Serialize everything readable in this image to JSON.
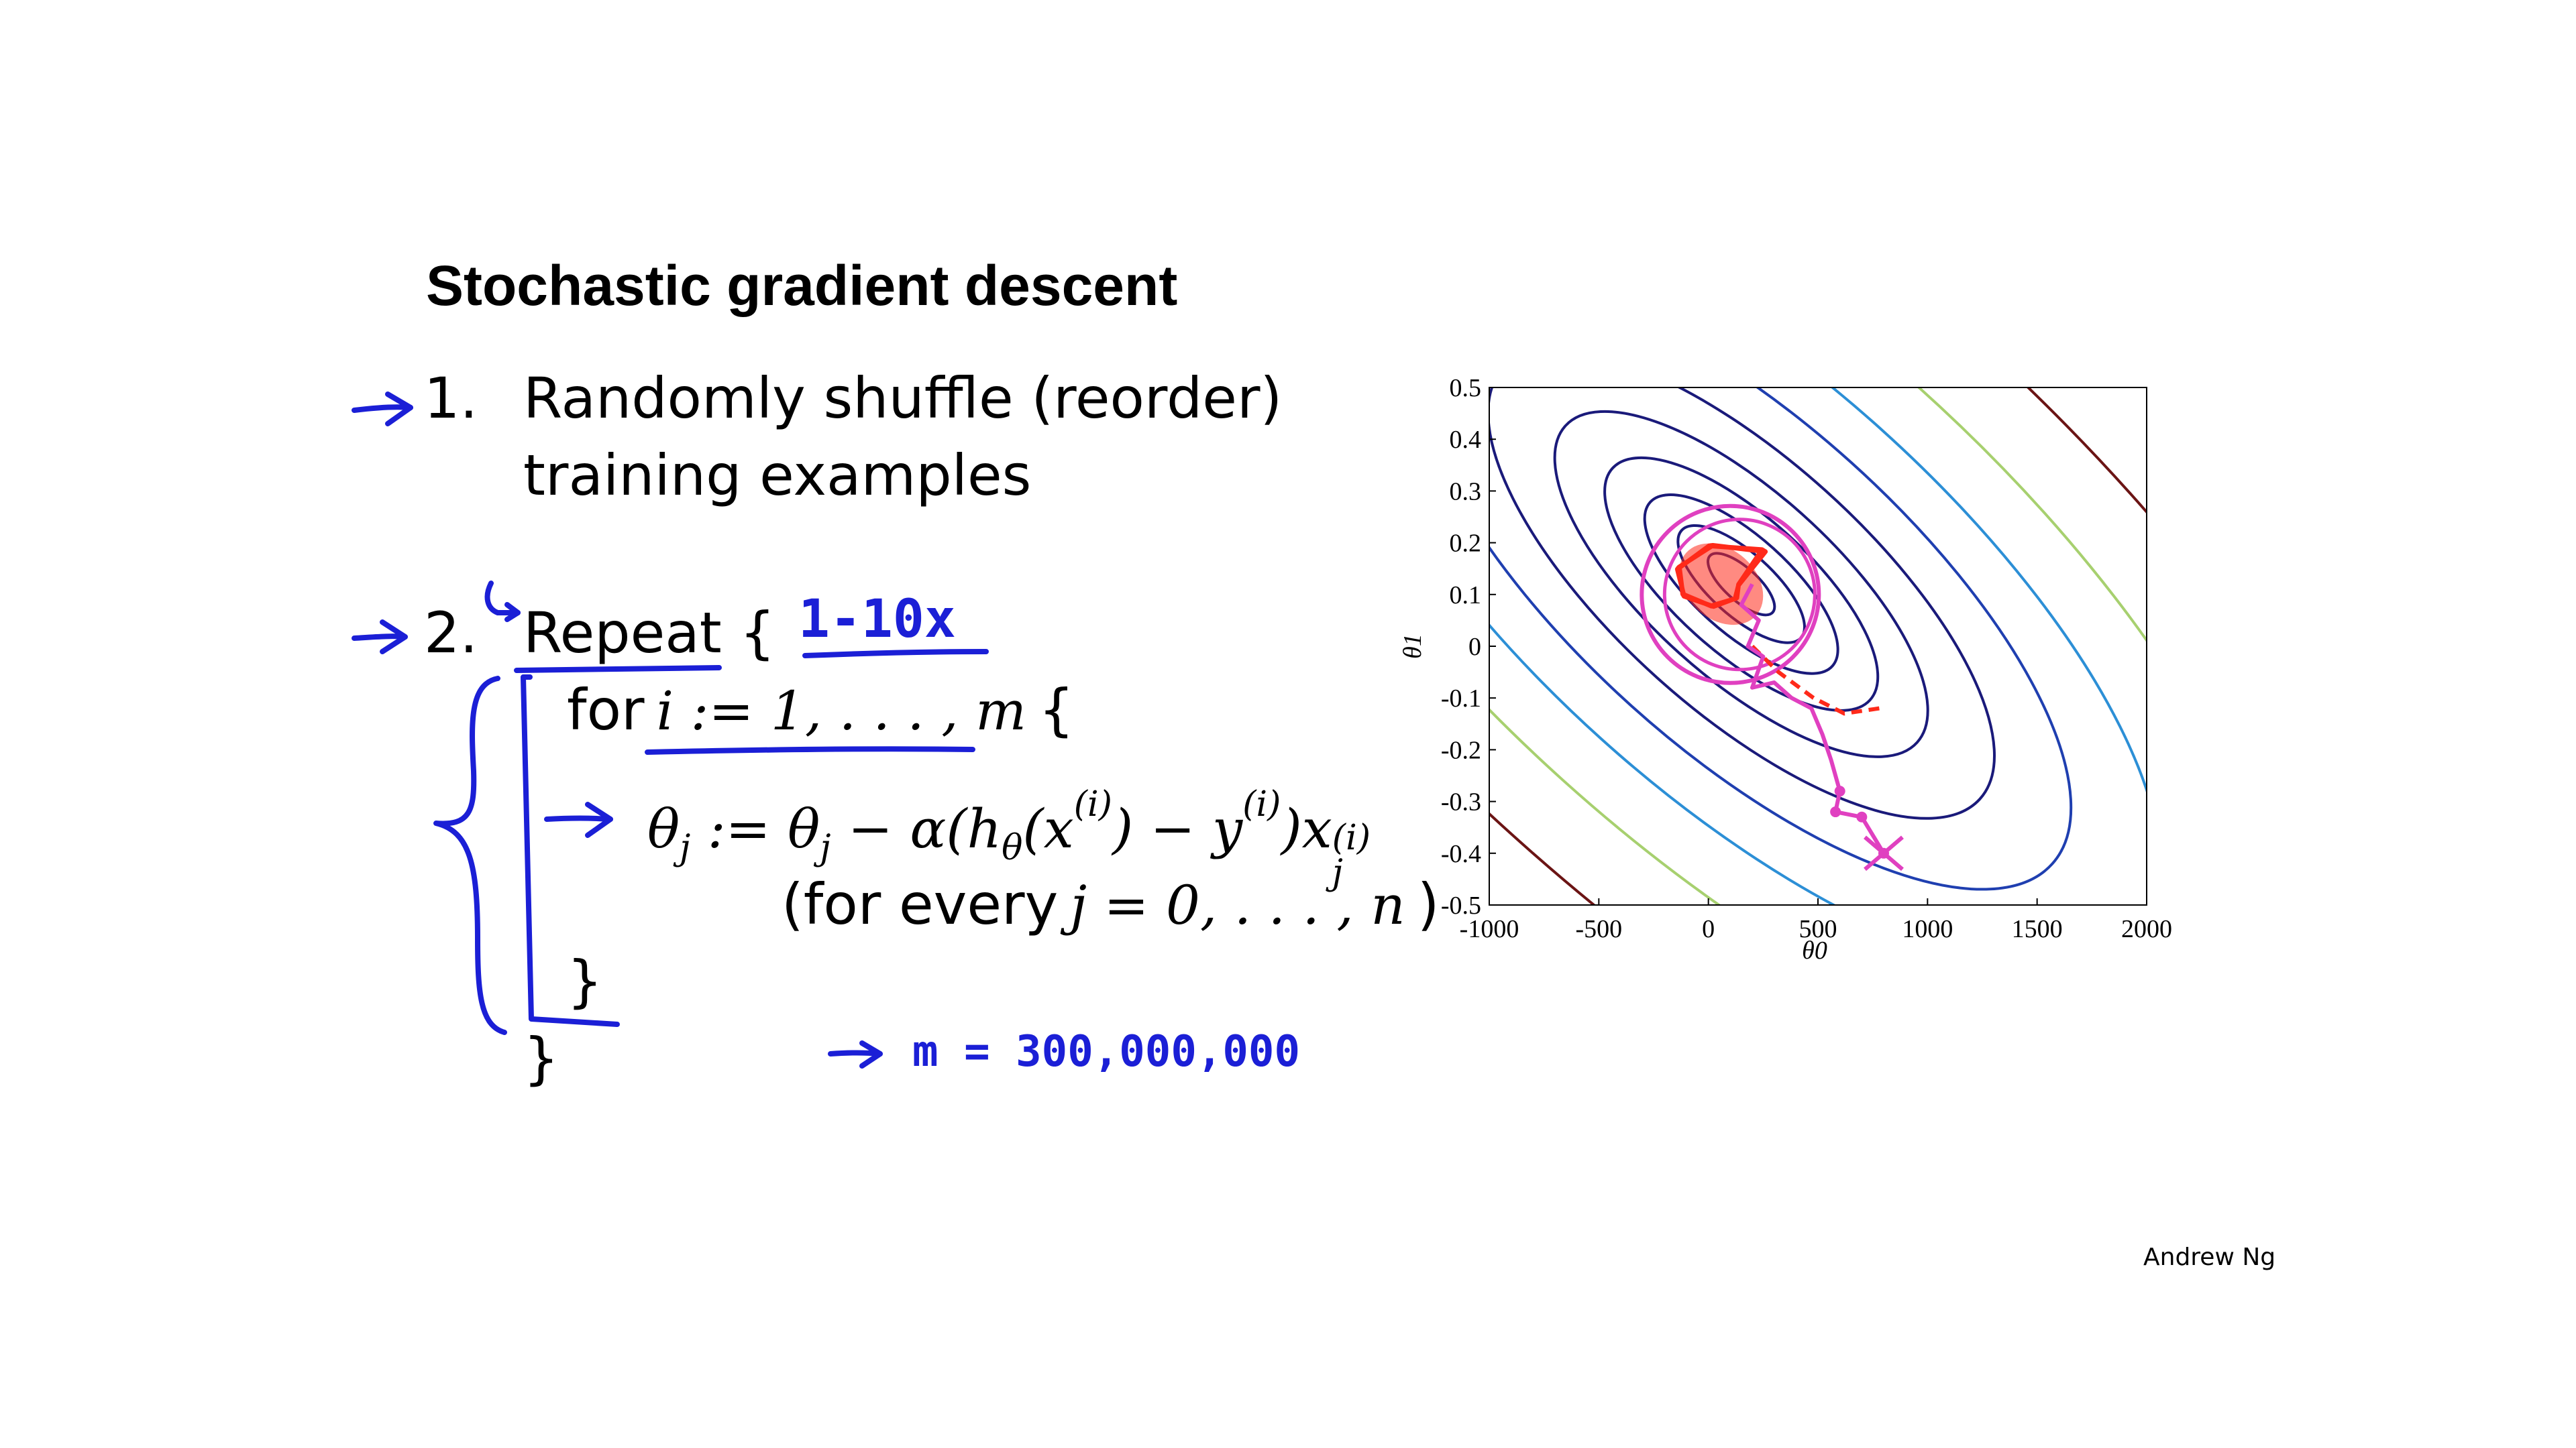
{
  "slide": {
    "title": "Stochastic gradient descent",
    "footer": "Andrew Ng",
    "step1": {
      "number": "1.",
      "line1": "Randomly shuffle (reorder)",
      "line2": "training examples"
    },
    "step2": {
      "number": "2.",
      "repeat_label": "Repeat {",
      "for_keyword": "for",
      "for_range": "i := 1, . . . , m",
      "for_open": "{",
      "update_lhs": "θ",
      "update_lhs_sub": "j",
      "update_assign": " := θ",
      "update_sub2": "j",
      "update_mid": " − α(h",
      "update_h_sub": "θ",
      "update_x": "(x",
      "update_sup1": "(i)",
      "update_y": ") − y",
      "update_sup2": "(i)",
      "update_xj": ")x",
      "update_sup3": "(i)",
      "update_sub3": "j",
      "every_open": "(for every",
      "every_range": "j = 0, . . . , n",
      "every_close": ")",
      "inner_close": "}",
      "outer_close": "}"
    }
  },
  "annotations": {
    "repeat_count": "1-10x",
    "m_value": "m = 300,000,000",
    "ink_color": "#1b1fd6"
  },
  "chart_data": {
    "type": "contour",
    "xlabel": "θ0",
    "ylabel": "θ1",
    "xlim": [
      -1000,
      2000
    ],
    "ylim": [
      -0.5,
      0.5
    ],
    "xticks": [
      "-1000",
      "-500",
      "0",
      "500",
      "1000",
      "1500",
      "2000"
    ],
    "yticks": [
      "0.5",
      "0.4",
      "0.3",
      "0.2",
      "0.1",
      "0",
      "-0.1",
      "-0.2",
      "-0.3",
      "-0.4",
      "-0.5"
    ],
    "grid": false,
    "contours": {
      "center": [
        150,
        0.12
      ],
      "levels": [
        {
          "color": "#1a1a7a"
        },
        {
          "color": "#1a1a7a"
        },
        {
          "color": "#1a1a7a"
        },
        {
          "color": "#1a1a7a"
        },
        {
          "color": "#1a1a7a"
        },
        {
          "color": "#1a1a7a"
        },
        {
          "color": "#1f3fb0"
        },
        {
          "color": "#2c8fd6"
        },
        {
          "color": "#a7d06f"
        },
        {
          "color": "#6b1414"
        }
      ]
    },
    "sgd_path": [
      [
        800,
        -0.4
      ],
      [
        700,
        -0.33
      ],
      [
        580,
        -0.32
      ],
      [
        600,
        -0.28
      ],
      [
        560,
        -0.22
      ],
      [
        520,
        -0.17
      ],
      [
        470,
        -0.12
      ],
      [
        380,
        -0.1
      ],
      [
        300,
        -0.07
      ],
      [
        200,
        -0.08
      ],
      [
        250,
        -0.02
      ],
      [
        180,
        0.0
      ],
      [
        230,
        0.05
      ],
      [
        150,
        0.08
      ],
      [
        200,
        0.12
      ]
    ],
    "annotation_circle": {
      "center": [
        100,
        0.1
      ],
      "color": "#e040c0"
    },
    "scribble_color": "#ff2a1a",
    "path_color": "#e040c0"
  }
}
